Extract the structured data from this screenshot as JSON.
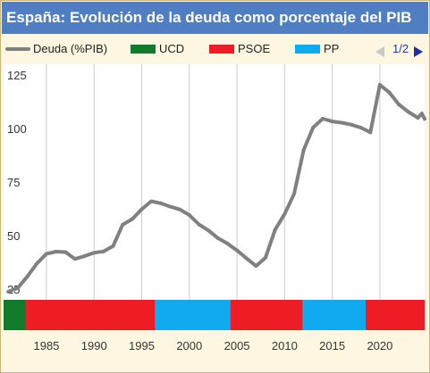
{
  "title": "España: Evolución de la deuda como porcentaje del PIB",
  "pager": {
    "label": "1/2",
    "prev_icon": "triangle-left-icon",
    "next_icon": "triangle-right-icon"
  },
  "colors": {
    "line": "#808080",
    "UCD": "#127a2b",
    "PSOE": "#ee1c25",
    "PP": "#10aaf0",
    "grid": "#cccccc"
  },
  "chart_data": {
    "type": "line",
    "title": "España: Evolución de la deuda como porcentaje del PIB",
    "xlabel": "",
    "ylabel": "",
    "xlim": [
      1980.5,
      2024.7
    ],
    "ylim": [
      20,
      130
    ],
    "yticks": [
      25,
      50,
      75,
      100,
      125
    ],
    "xticks": [
      1985,
      1990,
      1995,
      2000,
      2005,
      2010,
      2015,
      2020
    ],
    "grid": "vertical",
    "legend_position": "top",
    "series": [
      {
        "name": "Deuda (%PIB)",
        "x": [
          1981,
          1982,
          1983,
          1984,
          1985,
          1986,
          1987,
          1988,
          1989,
          1990,
          1991,
          1992,
          1993,
          1994,
          1995,
          1996,
          1997,
          1998,
          1999,
          2000,
          2001,
          2002,
          2003,
          2004,
          2005,
          2006,
          2007,
          2008,
          2009,
          2010,
          2011,
          2012,
          2013,
          2014,
          2015,
          2016,
          2017,
          2018,
          2019,
          2020,
          2021,
          2022,
          2023,
          2024,
          2024.4,
          2024.7
        ],
        "y": [
          23.8,
          25.6,
          30.9,
          37.0,
          41.5,
          42.5,
          42.3,
          39.1,
          40.4,
          42.0,
          42.6,
          45.1,
          55.1,
          57.7,
          62.3,
          66.0,
          65.1,
          63.5,
          62.2,
          59.6,
          55.2,
          52.4,
          48.8,
          46.3,
          43.1,
          39.4,
          35.8,
          39.7,
          52.7,
          60.1,
          69.5,
          90.0,
          100.5,
          104.6,
          103.3,
          102.7,
          101.8,
          100.4,
          98.2,
          120.4,
          116.8,
          111.2,
          107.7,
          105.0,
          107.0,
          104.5
        ]
      }
    ],
    "legend": [
      "Deuda (%PIB)",
      "UCD",
      "PSOE",
      "PP"
    ],
    "governments": [
      {
        "party": "UCD",
        "start": 1980.5,
        "end": 1982.8
      },
      {
        "party": "PSOE",
        "start": 1982.8,
        "end": 1996.4
      },
      {
        "party": "PP",
        "start": 1996.4,
        "end": 2004.3
      },
      {
        "party": "PSOE",
        "start": 2004.3,
        "end": 2011.9
      },
      {
        "party": "PP",
        "start": 2011.9,
        "end": 2018.5
      },
      {
        "party": "PSOE",
        "start": 2018.5,
        "end": 2024.7
      }
    ]
  }
}
